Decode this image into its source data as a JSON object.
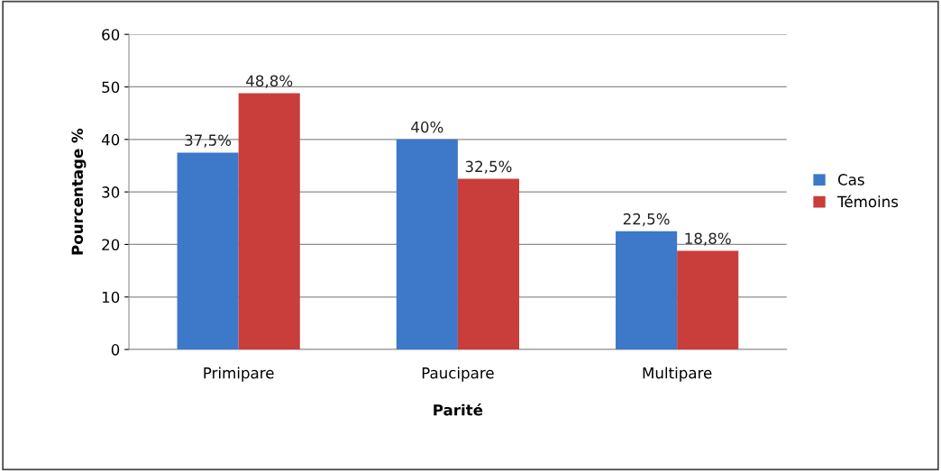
{
  "chart_data": {
    "type": "bar",
    "xlabel": "Parité",
    "ylabel": "Pourcentage %",
    "categories": [
      "Primipare",
      "Paucipare",
      "Multipare"
    ],
    "series": [
      {
        "name": "Cas",
        "color": "#3d78c9",
        "values": [
          37.5,
          40,
          22.5
        ],
        "value_labels": [
          "37,5%",
          "40%",
          "22,5%"
        ]
      },
      {
        "name": "Témoins",
        "color": "#c93d3b",
        "values": [
          48.8,
          32.5,
          18.8
        ],
        "value_labels": [
          "48,8%",
          "32,5%",
          "18,8%"
        ]
      }
    ],
    "ylim": [
      0,
      60
    ],
    "yticks": [
      0,
      10,
      20,
      30,
      40,
      50,
      60
    ],
    "grid": "y",
    "legend": "right"
  }
}
